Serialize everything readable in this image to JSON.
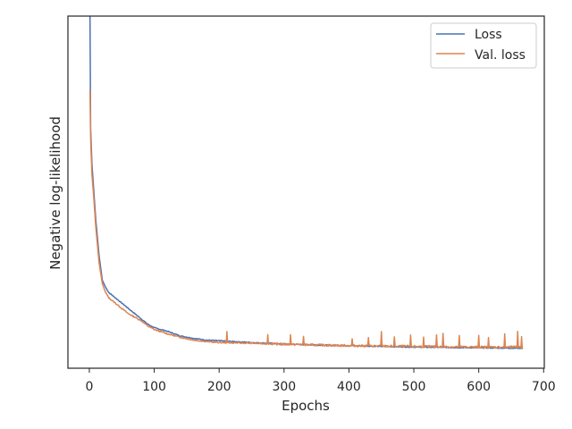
{
  "chart_data": {
    "type": "line",
    "title": "",
    "xlabel": "Epochs",
    "ylabel": "Negative log-likelihood",
    "xlim": [
      -33,
      701
    ],
    "ylim": [
      0,
      100
    ],
    "y_tick_labels_shown": false,
    "x_ticks": [
      0,
      100,
      200,
      300,
      400,
      500,
      600,
      700
    ],
    "x_tick_labels": [
      "0",
      "100",
      "200",
      "300",
      "400",
      "500",
      "600",
      "700"
    ],
    "grid": false,
    "legend": "top-right",
    "colors": {
      "loss": "#4c72b0",
      "val_loss": "#dd8452"
    },
    "series": [
      {
        "name": "Loss",
        "key": "loss",
        "x": [
          1,
          2,
          4,
          7,
          10,
          15,
          20,
          25,
          30,
          40,
          50,
          60,
          70,
          80,
          90,
          100,
          120,
          140,
          160,
          180,
          200,
          250,
          300,
          350,
          400,
          450,
          500,
          550,
          600,
          650,
          668
        ],
        "y": [
          100,
          68,
          58,
          50,
          42,
          32,
          25,
          23,
          21.5,
          20,
          18.5,
          17,
          15.5,
          14,
          12.5,
          11.5,
          10.5,
          9.2,
          8.5,
          8,
          7.8,
          7.3,
          6.9,
          6.6,
          6.4,
          6.2,
          6.0,
          5.9,
          5.8,
          5.7,
          5.7
        ]
      },
      {
        "name": "Val. loss",
        "key": "val_loss",
        "x": [
          1,
          2,
          4,
          7,
          10,
          15,
          20,
          25,
          30,
          40,
          50,
          60,
          70,
          80,
          90,
          100,
          120,
          140,
          160,
          180,
          200,
          250,
          300,
          350,
          400,
          450,
          500,
          550,
          600,
          650,
          668
        ],
        "y": [
          79,
          65,
          55,
          48,
          40,
          30,
          24,
          21.5,
          20,
          18.5,
          17,
          15.5,
          14.5,
          13.5,
          12,
          11,
          9.8,
          8.8,
          8,
          7.6,
          7.3,
          7.1,
          6.8,
          6.6,
          6.4,
          6.3,
          6.2,
          6.1,
          6.0,
          6.0,
          6.0
        ],
        "spikes": [
          [
            212,
            3
          ],
          [
            275,
            2.5
          ],
          [
            310,
            3
          ],
          [
            330,
            2.5
          ],
          [
            405,
            2
          ],
          [
            430,
            2.5
          ],
          [
            450,
            4
          ],
          [
            470,
            2.5
          ],
          [
            495,
            3
          ],
          [
            515,
            2.5
          ],
          [
            535,
            3.5
          ],
          [
            545,
            4
          ],
          [
            570,
            3
          ],
          [
            600,
            3.5
          ],
          [
            615,
            3
          ],
          [
            640,
            3.5
          ],
          [
            660,
            4.5
          ],
          [
            666,
            3
          ]
        ]
      }
    ]
  }
}
